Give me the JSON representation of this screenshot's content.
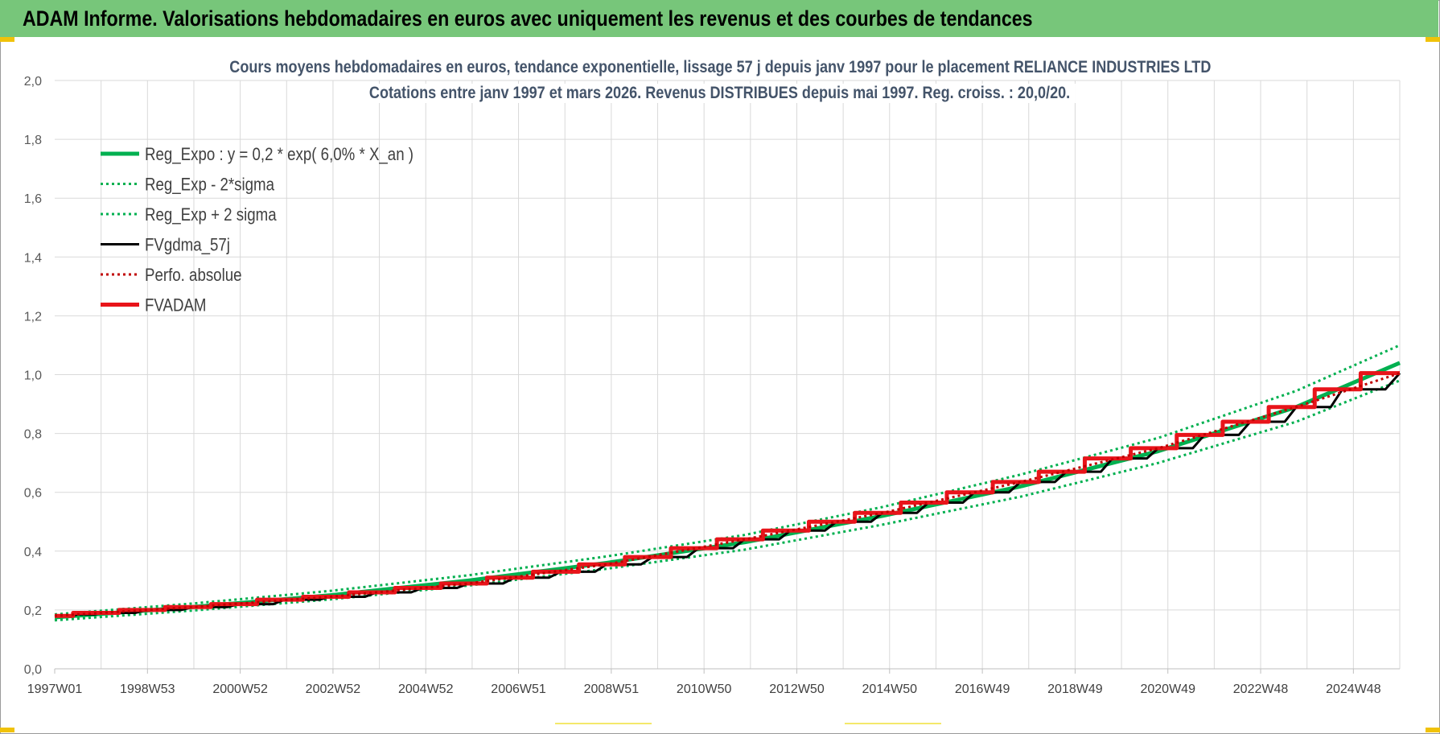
{
  "banner": {
    "title": "ADAM Informe. Valorisations hebdomadaires en euros avec uniquement les revenus et des courbes de tendances"
  },
  "colors": {
    "banner": "#77c67a",
    "reg_expo": "#00b050",
    "fvgdma": "#000000",
    "fvadam": "#e8141a",
    "perfo": "#c00000",
    "grid": "#d9d9d9",
    "title_text": "#44546a"
  },
  "chart_data": {
    "type": "line",
    "title": "Cours moyens hebdomadaires en euros, tendance exponentielle, lissage 57 j depuis janv 1997 pour le placement RELIANCE INDUSTRIES LTD",
    "subtitle": "Cotations entre janv 1997 et mars 2026. Revenus DISTRIBUES depuis mai 1997. Reg. croiss. : 20,0/20.",
    "xlabel": "",
    "ylabel": "",
    "ylim": [
      0,
      2.0
    ],
    "xlim": [
      1997.0,
      2026.25
    ],
    "y_ticks": [
      "0,0",
      "0,2",
      "0,4",
      "0,6",
      "0,8",
      "1,0",
      "1,2",
      "1,4",
      "1,6",
      "1,8",
      "2,0"
    ],
    "x_ticks": [
      "1997W01",
      "1998W53",
      "2000W52",
      "2002W52",
      "2004W52",
      "2006W51",
      "2008W51",
      "2010W50",
      "2012W50",
      "2014W50",
      "2016W49",
      "2018W49",
      "2020W49",
      "2022W48",
      "2024W48"
    ],
    "grid": true,
    "legend_position": "top-left",
    "series": [
      {
        "name": "Reg_Expo : y = 0,2 * exp( 6,0% *  X_an )",
        "style": "solid-thick",
        "color": "#00b050",
        "x": [
          1997.0,
          2000.0,
          2003.0,
          2006.0,
          2009.0,
          2012.0,
          2015.0,
          2018.0,
          2021.0,
          2024.0,
          2026.25
        ],
        "y": [
          0.175,
          0.21,
          0.25,
          0.3,
          0.36,
          0.43,
          0.52,
          0.62,
          0.74,
          0.89,
          1.04
        ]
      },
      {
        "name": "Reg_Exp - 2*sigma",
        "style": "dotted",
        "color": "#00b050",
        "x": [
          1997.0,
          2000.0,
          2003.0,
          2006.0,
          2009.0,
          2012.0,
          2015.0,
          2018.0,
          2021.0,
          2024.0,
          2026.25
        ],
        "y": [
          0.165,
          0.198,
          0.236,
          0.283,
          0.34,
          0.405,
          0.49,
          0.585,
          0.7,
          0.84,
          0.98
        ]
      },
      {
        "name": "Reg_Exp + 2 sigma",
        "style": "dotted",
        "color": "#00b050",
        "x": [
          1997.0,
          2000.0,
          2003.0,
          2006.0,
          2009.0,
          2012.0,
          2015.0,
          2018.0,
          2021.0,
          2024.0,
          2026.25
        ],
        "y": [
          0.185,
          0.222,
          0.265,
          0.318,
          0.382,
          0.455,
          0.55,
          0.66,
          0.785,
          0.945,
          1.1
        ]
      },
      {
        "name": "FVgdma_57j",
        "style": "solid",
        "color": "#000000",
        "x": [
          1997.0,
          1997.5,
          1998.0,
          1999.0,
          2000.0,
          2001.0,
          2002.0,
          2003.0,
          2004.0,
          2005.0,
          2006.0,
          2007.0,
          2008.0,
          2009.0,
          2010.0,
          2011.0,
          2012.0,
          2013.0,
          2014.0,
          2015.0,
          2016.0,
          2017.0,
          2018.0,
          2019.0,
          2020.0,
          2021.0,
          2022.0,
          2023.0,
          2024.0,
          2025.0,
          2026.25
        ],
        "y": [
          0.18,
          0.185,
          0.19,
          0.2,
          0.21,
          0.22,
          0.235,
          0.245,
          0.26,
          0.275,
          0.29,
          0.31,
          0.33,
          0.355,
          0.38,
          0.41,
          0.44,
          0.47,
          0.5,
          0.53,
          0.565,
          0.6,
          0.635,
          0.67,
          0.715,
          0.75,
          0.795,
          0.84,
          0.89,
          0.95,
          1.005
        ]
      },
      {
        "name": "Perfo. absolue",
        "style": "dotted",
        "color": "#c00000",
        "x": [
          1997.0,
          2000.0,
          2003.0,
          2006.0,
          2009.0,
          2012.0,
          2015.0,
          2018.0,
          2021.0,
          2024.0,
          2026.25
        ],
        "y": [
          0.18,
          0.21,
          0.245,
          0.29,
          0.355,
          0.44,
          0.53,
          0.635,
          0.75,
          0.89,
          1.005
        ]
      },
      {
        "name": "FVADAM",
        "style": "step-thick",
        "color": "#e8141a",
        "x": [
          1997.0,
          1997.4,
          1998.4,
          1999.4,
          2000.4,
          2001.4,
          2002.4,
          2003.4,
          2004.4,
          2005.4,
          2006.4,
          2007.4,
          2008.4,
          2009.4,
          2010.4,
          2011.4,
          2012.4,
          2013.4,
          2014.4,
          2015.4,
          2016.4,
          2017.4,
          2018.4,
          2019.4,
          2020.4,
          2021.4,
          2022.4,
          2023.4,
          2024.4,
          2025.4,
          2026.25
        ],
        "y": [
          0.18,
          0.19,
          0.2,
          0.21,
          0.22,
          0.235,
          0.245,
          0.26,
          0.275,
          0.29,
          0.31,
          0.33,
          0.355,
          0.38,
          0.41,
          0.44,
          0.47,
          0.5,
          0.53,
          0.565,
          0.6,
          0.635,
          0.67,
          0.715,
          0.75,
          0.795,
          0.84,
          0.89,
          0.95,
          1.005,
          1.005
        ]
      }
    ]
  }
}
